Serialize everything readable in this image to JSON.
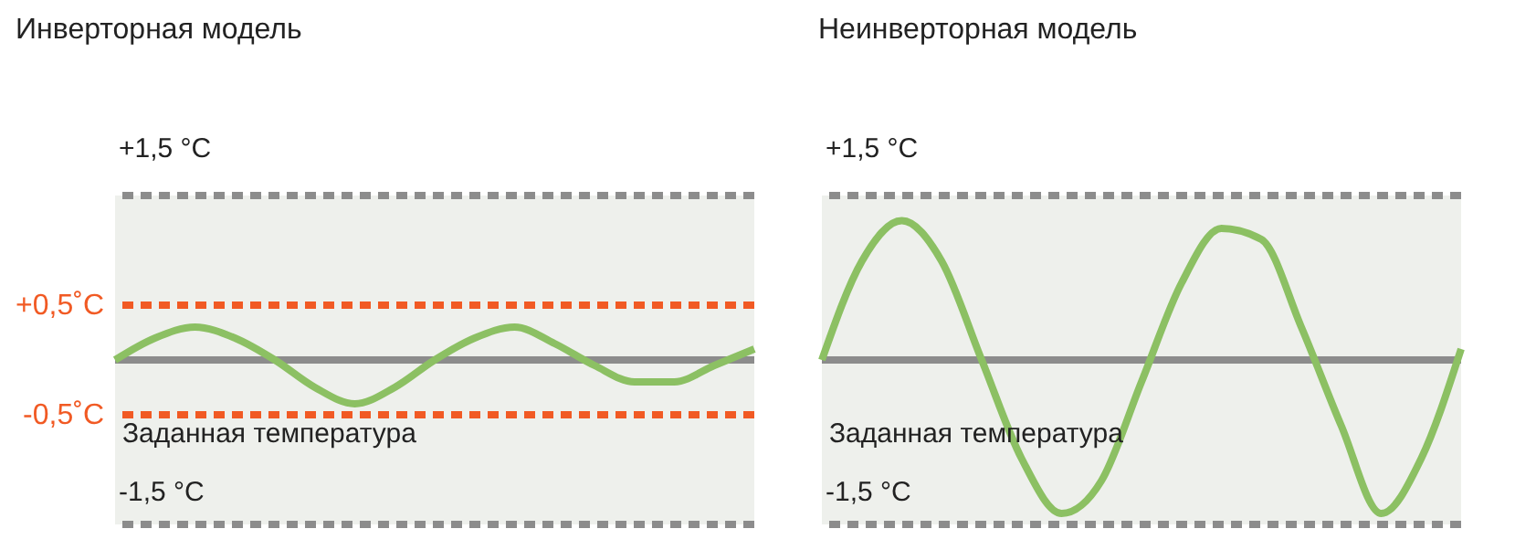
{
  "chart_data": [
    {
      "type": "line",
      "title": "Инверторная модель",
      "categories": [
        null,
        null,
        null,
        null,
        null,
        null,
        null,
        null,
        null,
        null,
        null,
        null,
        null,
        null,
        null,
        null,
        null
      ],
      "series": [
        {
          "color": "#8cc063",
          "values": [
            0,
            0.2,
            0.3,
            0.2,
            0,
            -0.25,
            -0.4,
            -0.25,
            0,
            0.2,
            0.3,
            0.15,
            -0.05,
            -0.2,
            -0.2,
            -0.05,
            0.1
          ]
        }
      ],
      "ylim": [
        -1.5,
        1.5
      ],
      "tick_labels": false,
      "grid": false,
      "marker": "none",
      "line_style": "solid",
      "ref_lines": [
        {
          "axis": "y",
          "value": 1.5,
          "label": "+1,5 °C",
          "color": "#8c8c8c",
          "line_style": "dashed"
        },
        {
          "axis": "y",
          "value": -1.5,
          "label": "-1,5 °C",
          "color": "#8c8c8c",
          "line_style": "dashed"
        },
        {
          "axis": "y",
          "value": 0,
          "label": "Заданная температура",
          "color": "#8c8c8c",
          "line_style": "solid"
        },
        {
          "axis": "y",
          "value": 0.5,
          "label": "+0,5˚C",
          "color": "#f15a24",
          "line_style": "dashed"
        },
        {
          "axis": "y",
          "value": -0.5,
          "label": "-0,5˚C",
          "color": "#f15a24",
          "line_style": "dashed"
        }
      ]
    },
    {
      "type": "line",
      "title": "Неинверторная модель",
      "categories": [
        null,
        null,
        null,
        null,
        null,
        null,
        null,
        null,
        null,
        null,
        null,
        null,
        null,
        null,
        null,
        null,
        null
      ],
      "series": [
        {
          "color": "#8cc063",
          "values": [
            0,
            0.9,
            1.27,
            0.9,
            0,
            -0.9,
            -1.4,
            -1.1,
            -0.2,
            0.7,
            1.2,
            1.1,
            0.3,
            -0.6,
            -1.4,
            -0.9,
            0.1
          ]
        }
      ],
      "ylim": [
        -1.5,
        1.5
      ],
      "tick_labels": false,
      "grid": false,
      "marker": "none",
      "line_style": "solid",
      "ref_lines": [
        {
          "axis": "y",
          "value": 1.5,
          "label": "+1,5 °C",
          "color": "#8c8c8c",
          "line_style": "dashed"
        },
        {
          "axis": "y",
          "value": -1.5,
          "label": "-1,5 °C",
          "color": "#8c8c8c",
          "line_style": "dashed"
        },
        {
          "axis": "y",
          "value": 0,
          "label": "Заданная температура",
          "color": "#8c8c8c",
          "line_style": "solid"
        }
      ]
    }
  ]
}
